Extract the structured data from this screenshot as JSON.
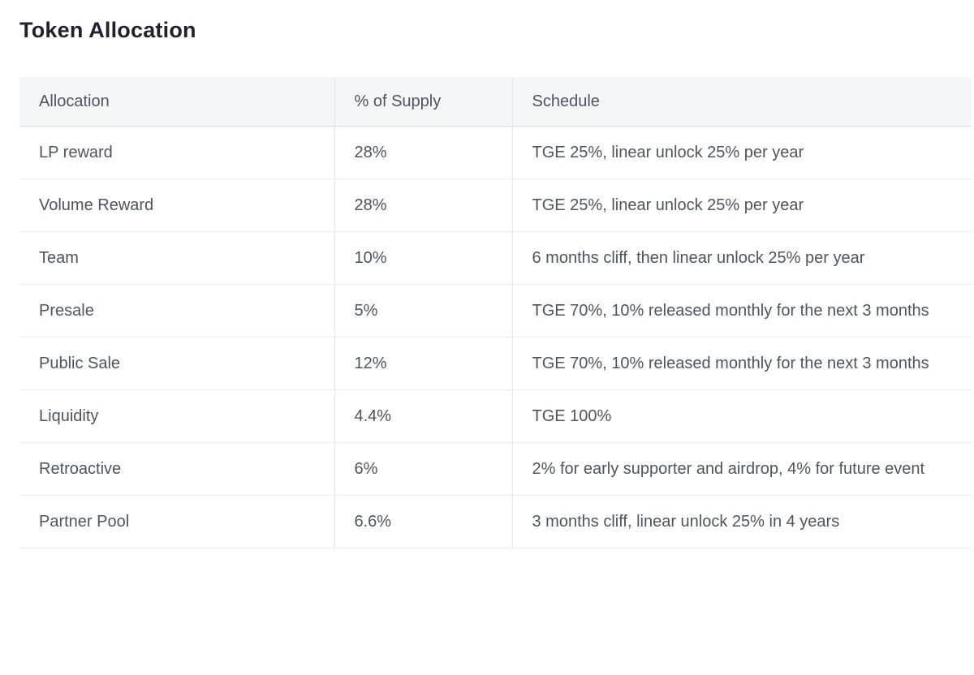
{
  "page_title": "Token Allocation",
  "colors": {
    "background": "#ffffff",
    "header_bg": "#f5f6f8",
    "row_border": "#e9ebee",
    "header_border": "#d9dce1",
    "column_divider": "#e4e7ea",
    "body_text": "#4b5563",
    "title_text": "#1d222c"
  },
  "table": {
    "columns": [
      "Allocation",
      "% of Supply",
      "Schedule"
    ],
    "rows": [
      {
        "allocation": "LP reward",
        "supply": "28%",
        "schedule": "TGE 25%, linear unlock 25% per year"
      },
      {
        "allocation": "Volume Reward",
        "supply": "28%",
        "schedule": "TGE 25%, linear unlock 25% per year"
      },
      {
        "allocation": "Team",
        "supply": "10%",
        "schedule": "6 months cliff, then linear unlock 25% per year"
      },
      {
        "allocation": "Presale",
        "supply": "5%",
        "schedule": "TGE 70%, 10% released monthly for the next 3 months"
      },
      {
        "allocation": "Public Sale",
        "supply": "12%",
        "schedule": "TGE 70%, 10% released monthly for the next 3 months"
      },
      {
        "allocation": "Liquidity",
        "supply": "4.4%",
        "schedule": "TGE 100%"
      },
      {
        "allocation": "Retroactive",
        "supply": "6%",
        "schedule": "2% for early supporter and airdrop, 4% for future event"
      },
      {
        "allocation": "Partner Pool",
        "supply": "6.6%",
        "schedule": "3 months cliff, linear unlock 25% in 4 years"
      }
    ]
  }
}
